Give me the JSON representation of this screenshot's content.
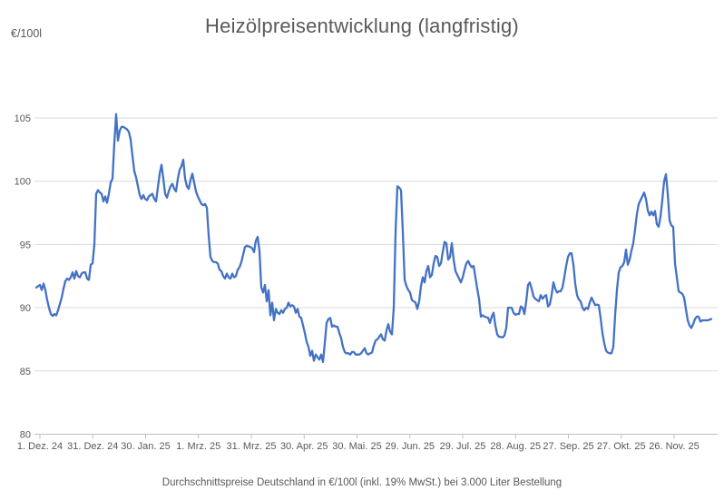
{
  "header": {
    "title": "Heizölpreisentwicklung (langfristig)",
    "unit_label": "€/100l"
  },
  "footer": {
    "caption": "Durchschnittspreise Deutschland in €/100l (inkl. 19% MwSt.) bei 3.000 Liter Bestellung"
  },
  "chart_data": {
    "type": "line",
    "title": "Heizölpreisentwicklung (langfristig)",
    "ylabel": "€/100l",
    "xlabel": "",
    "x_tick_labels": [
      "1. Dez. 24",
      "31. Dez. 24",
      "30. Jan. 25",
      "1. Mrz. 25",
      "31. Mrz. 25",
      "30. Apr. 25",
      "30. Mai. 25",
      "29. Jun. 25",
      "29. Jul. 25",
      "28. Aug. 25",
      "27. Sep. 25",
      "27. Okt. 25",
      "26. Nov. 25"
    ],
    "y_ticks": [
      80,
      85,
      90,
      95,
      100,
      105
    ],
    "ylim": [
      80,
      107.5
    ],
    "grid": "horizontal",
    "legend": "none",
    "colors": {
      "line": "#4472C4",
      "grid": "#D9D9D9",
      "axis": "#BFBFBF",
      "text": "#595959"
    },
    "series": [
      {
        "color": "#4472C4",
        "values": [
          91.6,
          91.7,
          91.8,
          91.4,
          91.9,
          91.4,
          90.6,
          90.0,
          89.5,
          89.35,
          89.5,
          89.4,
          89.8,
          90.3,
          90.8,
          91.5,
          92.1,
          92.3,
          92.2,
          92.4,
          92.8,
          92.3,
          92.9,
          92.5,
          92.4,
          92.7,
          92.8,
          92.8,
          92.3,
          92.2,
          93.4,
          93.5,
          95.0,
          99.0,
          99.3,
          99.1,
          99.0,
          98.4,
          98.8,
          98.3,
          99.0,
          99.9,
          100.2,
          103.0,
          105.3,
          103.2,
          104.0,
          104.3,
          104.3,
          104.2,
          104.1,
          103.9,
          103.3,
          102.0,
          100.8,
          100.3,
          99.6,
          98.9,
          98.6,
          98.9,
          98.6,
          98.5,
          98.8,
          98.9,
          99.0,
          98.6,
          98.4,
          99.5,
          100.6,
          101.3,
          100.2,
          99.0,
          98.7,
          99.2,
          99.6,
          99.8,
          99.4,
          99.2,
          100.2,
          100.9,
          101.2,
          101.7,
          100.2,
          99.6,
          99.4,
          100.1,
          100.6,
          99.9,
          99.2,
          98.8,
          98.5,
          98.2,
          98.1,
          98.2,
          97.9,
          95.7,
          94.0,
          93.7,
          93.6,
          93.6,
          93.5,
          93.0,
          92.9,
          92.5,
          92.3,
          92.7,
          92.4,
          92.3,
          92.7,
          92.4,
          92.5,
          93.0,
          93.2,
          93.6,
          94.2,
          94.8,
          94.9,
          94.85,
          94.8,
          94.7,
          94.4,
          95.3,
          95.6,
          94.5,
          91.6,
          91.2,
          91.8,
          90.5,
          91.4,
          89.4,
          90.4,
          89.0,
          89.9,
          89.6,
          89.5,
          89.8,
          89.6,
          89.9,
          90.0,
          90.4,
          90.1,
          90.2,
          90.1,
          89.6,
          89.9,
          89.3,
          89.2,
          88.6,
          88.0,
          87.3,
          86.9,
          86.2,
          86.6,
          85.8,
          86.3,
          86.1,
          85.9,
          86.3,
          85.7,
          87.2,
          88.8,
          89.1,
          89.2,
          88.5,
          88.6,
          88.5,
          88.5,
          88.0,
          87.6,
          86.9,
          86.5,
          86.4,
          86.4,
          86.3,
          86.5,
          86.5,
          86.3,
          86.3,
          86.3,
          86.4,
          86.6,
          86.8,
          86.4,
          86.3,
          86.4,
          86.45,
          87.0,
          87.4,
          87.5,
          87.7,
          87.9,
          87.5,
          87.4,
          88.2,
          88.7,
          88.1,
          87.9,
          90.0,
          96.0,
          99.6,
          99.5,
          99.3,
          96.0,
          92.2,
          91.7,
          91.4,
          91.2,
          90.6,
          90.5,
          90.4,
          89.9,
          90.5,
          91.7,
          92.4,
          92.0,
          92.9,
          93.3,
          92.4,
          92.6,
          93.5,
          94.1,
          94.0,
          93.3,
          93.5,
          94.4,
          95.2,
          95.1,
          93.8,
          94.0,
          95.1,
          93.8,
          92.9,
          92.6,
          92.3,
          92.0,
          92.4,
          93.0,
          93.5,
          93.7,
          93.4,
          93.2,
          93.3,
          92.4,
          91.5,
          90.7,
          89.3,
          89.4,
          89.3,
          89.25,
          89.2,
          88.8,
          89.3,
          89.6,
          88.6,
          87.9,
          87.7,
          87.7,
          87.65,
          87.8,
          88.4,
          90.0,
          90.0,
          90.0,
          89.6,
          89.45,
          89.5,
          89.5,
          90.1,
          90.0,
          89.5,
          90.5,
          91.8,
          92.0,
          91.5,
          90.9,
          90.7,
          90.6,
          90.5,
          91.0,
          90.7,
          90.9,
          91.0,
          90.1,
          90.25,
          91.0,
          92.0,
          91.5,
          91.2,
          91.3,
          91.3,
          91.6,
          92.4,
          93.3,
          94.0,
          94.3,
          94.3,
          93.4,
          91.9,
          91.0,
          90.65,
          90.5,
          90.0,
          89.8,
          90.0,
          89.9,
          90.4,
          90.8,
          90.5,
          90.2,
          90.25,
          90.2,
          89.2,
          88.0,
          87.2,
          86.6,
          86.45,
          86.4,
          86.4,
          86.9,
          89.4,
          91.4,
          92.8,
          93.2,
          93.3,
          93.6,
          94.6,
          93.4,
          93.8,
          94.5,
          95.1,
          96.2,
          97.4,
          98.2,
          98.5,
          98.8,
          99.1,
          98.6,
          97.7,
          97.3,
          97.6,
          97.3,
          97.65,
          96.6,
          96.4,
          97.2,
          98.5,
          100.0,
          100.55,
          99.0,
          96.9,
          96.5,
          96.4,
          93.5,
          92.4,
          91.3,
          91.2,
          91.1,
          90.8,
          89.9,
          89.0,
          88.6,
          88.4,
          88.7,
          89.1,
          89.3,
          89.3,
          88.9,
          89.0,
          89.0,
          89.0,
          89.0,
          89.05,
          89.1
        ]
      }
    ]
  }
}
